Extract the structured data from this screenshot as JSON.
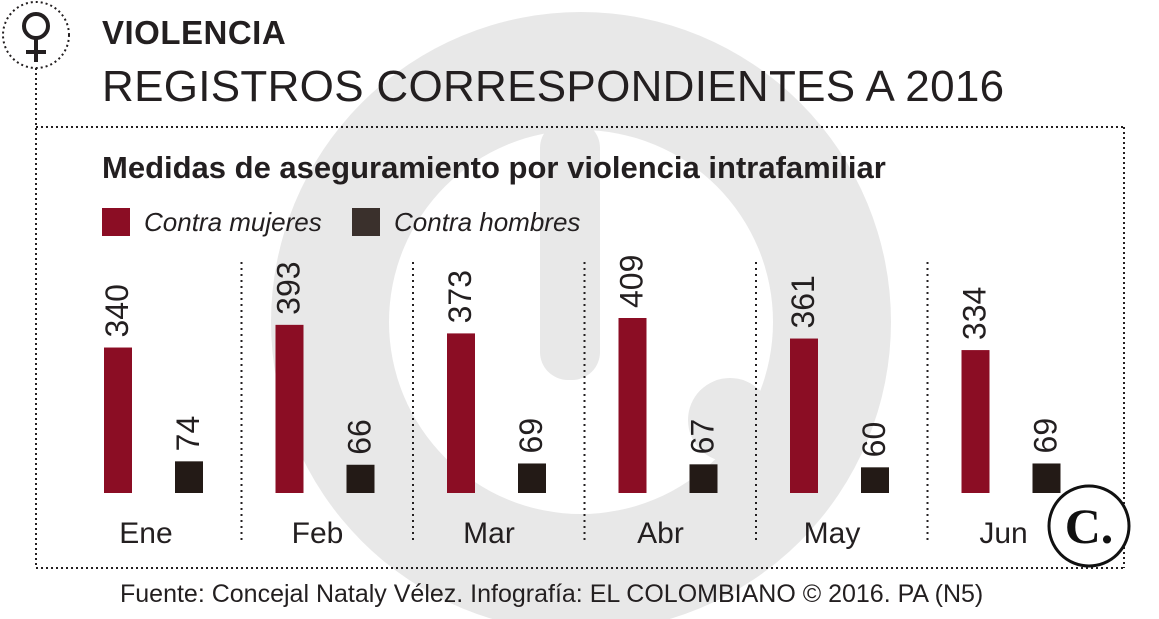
{
  "kicker": "VIOLENCIA",
  "headline": "REGISTROS CORRESPONDIENTES A 2016",
  "source": "Fuente: Concejal Nataly Vélez. Infografía: EL COLOMBIANO © 2016. PA (N5)",
  "icons": {
    "header": "female-symbol-icon",
    "brand": "el-colombiano-logo-icon"
  },
  "logo_text": "C.",
  "colors": {
    "women": "#8b0d24",
    "men": "#231a16",
    "text": "#231f20",
    "watermark": "#e6e6e6"
  },
  "chart_data": {
    "type": "bar",
    "title": "Medidas de aseguramiento por violencia intrafamiliar",
    "categories": [
      "Ene",
      "Feb",
      "Mar",
      "Abr",
      "May",
      "Jun"
    ],
    "series": [
      {
        "name": "Contra mujeres",
        "values": [
          340,
          393,
          373,
          409,
          361,
          334
        ]
      },
      {
        "name": "Contra hombres",
        "values": [
          74,
          66,
          69,
          67,
          60,
          69
        ]
      }
    ],
    "ylim": [
      0,
      409
    ],
    "grid": false,
    "legend": "top-left",
    "data_labels": true
  }
}
